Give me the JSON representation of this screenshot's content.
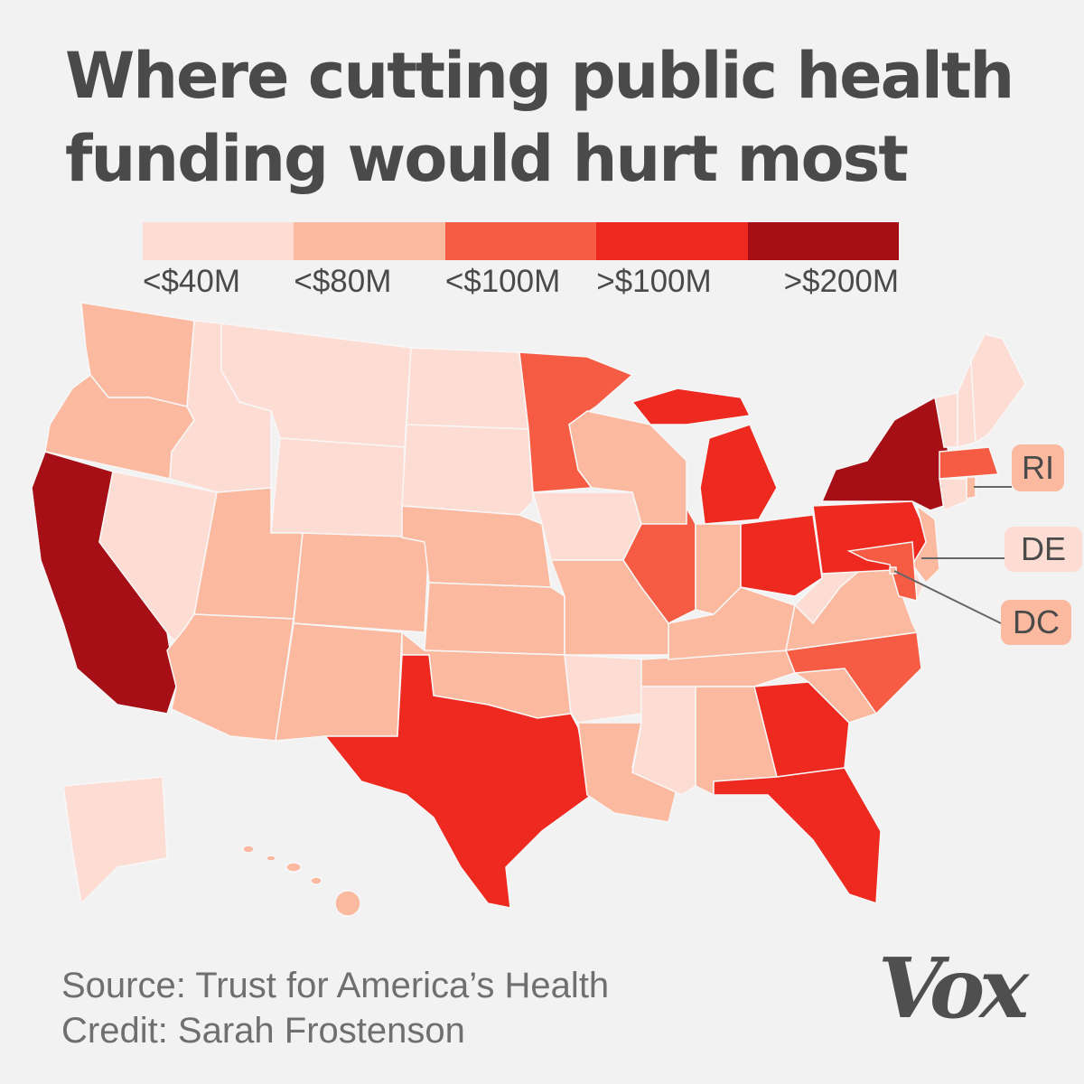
{
  "title": {
    "line1": "Where cutting public health",
    "line2": "funding would hurt most"
  },
  "legend": [
    {
      "label": "<$40M",
      "color": "#fdddd3"
    },
    {
      "label": "<$80M",
      "color": "#fbb9a0"
    },
    {
      "label": "<$100M",
      "color": "#f65c44"
    },
    {
      "label": ">$100M",
      "color": "#ee2920"
    },
    {
      "label": ">$200M",
      "color": "#a50f15"
    }
  ],
  "states": {
    "WA": "<$80M",
    "OR": "<$80M",
    "CA": ">$200M",
    "NV": "<$40M",
    "ID": "<$40M",
    "MT": "<$40M",
    "WY": "<$40M",
    "UT": "<$80M",
    "AZ": "<$80M",
    "CO": "<$80M",
    "NM": "<$80M",
    "ND": "<$40M",
    "SD": "<$40M",
    "NE": "<$80M",
    "KS": "<$80M",
    "OK": "<$80M",
    "TX": ">$100M",
    "MN": "<$100M",
    "IA": "<$40M",
    "MO": "<$80M",
    "AR": "<$40M",
    "LA": "<$80M",
    "WI": "<$80M",
    "IL": "<$100M",
    "MI": ">$100M",
    "IN": "<$80M",
    "OH": ">$100M",
    "KY": "<$80M",
    "TN": "<$80M",
    "MS": "<$40M",
    "AL": "<$80M",
    "GA": ">$100M",
    "FL": ">$100M",
    "SC": "<$80M",
    "NC": "<$100M",
    "VA": "<$80M",
    "WV": "<$40M",
    "PA": ">$100M",
    "NY": ">$200M",
    "VT": "<$40M",
    "NH": "<$40M",
    "ME": "<$40M",
    "MA": "<$100M",
    "RI": "<$80M",
    "CT": "<$40M",
    "NJ": "<$80M",
    "DE": "<$40M",
    "MD": "<$100M",
    "DC": "<$80M",
    "AK": "<$40M",
    "HI": "<$80M"
  },
  "callouts": [
    {
      "label": "RI",
      "state": "RI"
    },
    {
      "label": "DE",
      "state": "DE"
    },
    {
      "label": "DC",
      "state": "DC"
    }
  ],
  "footer": {
    "source": "Source: Trust for America’s Health",
    "credit": "Credit: Sarah Frostenson",
    "logo": "Vox"
  },
  "background": "#f2f2f2"
}
